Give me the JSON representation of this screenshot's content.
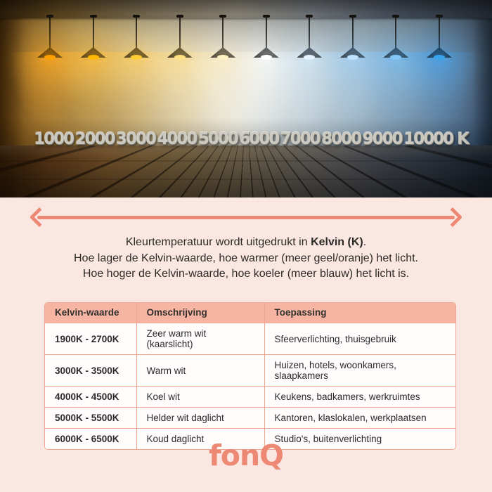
{
  "colors": {
    "accent": "#ec8873",
    "background": "#fbe7e1",
    "table_header_bg": "#f6b5a3",
    "table_border": "#f0a592"
  },
  "scene": {
    "unit_suffix": "K",
    "lamps": [
      {
        "kelvin": "1000",
        "glow": "#ffa200",
        "wash": "rgba(255,168,30,0.55)",
        "shade": "#3a2408"
      },
      {
        "kelvin": "2000",
        "glow": "#ffb800",
        "wash": "rgba(255,190,55,0.50)",
        "shade": "#3a2a0c"
      },
      {
        "kelvin": "3000",
        "glow": "#ffcb33",
        "wash": "rgba(255,205,90,0.46)",
        "shade": "#3c2e12"
      },
      {
        "kelvin": "4000",
        "glow": "#ffdf80",
        "wash": "rgba(255,220,130,0.42)",
        "shade": "#3e3420"
      },
      {
        "kelvin": "5000",
        "glow": "#fff0c2",
        "wash": "rgba(255,238,190,0.40)",
        "shade": "#3c3830"
      },
      {
        "kelvin": "6000",
        "glow": "#ffffff",
        "wash": "rgba(255,255,255,0.38)",
        "shade": "#33363a"
      },
      {
        "kelvin": "7000",
        "glow": "#e8f4ff",
        "wash": "rgba(213,238,255,0.40)",
        "shade": "#2a3642"
      },
      {
        "kelvin": "8000",
        "glow": "#bfe3ff",
        "wash": "rgba(165,215,255,0.44)",
        "shade": "#22303e"
      },
      {
        "kelvin": "9000",
        "glow": "#85c8f8",
        "wash": "rgba(120,195,250,0.48)",
        "shade": "#1b2a3a"
      },
      {
        "kelvin": "10000",
        "glow": "#3aa5ec",
        "wash": "rgba(70,165,240,0.52)",
        "shade": "#142436"
      }
    ]
  },
  "legend": {
    "line1_prefix": "Kleurtemperatuur wordt uitgedrukt in ",
    "line1_bold": "Kelvin (K)",
    "line1_suffix": ".",
    "line2": "Hoe lager de Kelvin-waarde, hoe warmer (meer geel/oranje) het licht.",
    "line3": "Hoe hoger de Kelvin-waarde, hoe koeler (meer blauw) het licht is."
  },
  "table": {
    "headers": [
      "Kelvin-waarde",
      "Omschrijving",
      "Toepassing"
    ],
    "rows": [
      {
        "kelvin": "1900K - 2700K",
        "omschrijving": "Zeer warm wit (kaarslicht)",
        "toepassing": "Sfeerverlichting, thuisgebruik"
      },
      {
        "kelvin": "3000K - 3500K",
        "omschrijving": "Warm wit",
        "toepassing": "Huizen, hotels, woonkamers, slaapkamers"
      },
      {
        "kelvin": "4000K - 4500K",
        "omschrijving": "Koel wit",
        "toepassing": "Keukens, badkamers, werkruimtes"
      },
      {
        "kelvin": "5000K - 5500K",
        "omschrijving": "Helder wit daglicht",
        "toepassing": "Kantoren, klaslokalen, werkplaatsen"
      },
      {
        "kelvin": "6000K - 6500K",
        "omschrijving": "Koud daglicht",
        "toepassing": "Studio's, buitenverlichting"
      }
    ]
  },
  "footer": {
    "brand": "fonQ"
  }
}
